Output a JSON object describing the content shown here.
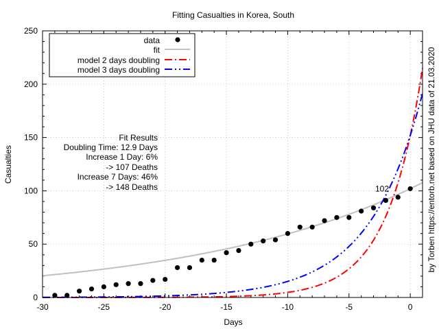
{
  "chart_data": {
    "type": "scatter",
    "title": "Fitting Casualties in Korea, South",
    "xlabel": "Days",
    "ylabel": "Casualties",
    "xlim": [
      -30,
      1
    ],
    "ylim": [
      0,
      250
    ],
    "xticks": [
      -30,
      -25,
      -20,
      -15,
      -10,
      -5,
      0
    ],
    "yticks": [
      0,
      50,
      100,
      150,
      200,
      250
    ],
    "grid": true,
    "legend_position": "top-left",
    "colors": {
      "data": "#000000",
      "fit": "#c0c0c0",
      "model2": "#ff0000",
      "model3": "#0000ff",
      "grid": "#b0b0b0"
    },
    "series": [
      {
        "name": "data",
        "kind": "points",
        "x": [
          -29,
          -28,
          -27,
          -26,
          -25,
          -24,
          -23,
          -22,
          -21,
          -20,
          -19,
          -18,
          -17,
          -16,
          -15,
          -14,
          -13,
          -12,
          -11,
          -10,
          -9,
          -8,
          -7,
          -6,
          -5,
          -4,
          -3,
          -2,
          -1,
          0
        ],
        "y": [
          2,
          2,
          6,
          8,
          10,
          12,
          13,
          13,
          16,
          17,
          28,
          28,
          35,
          35,
          42,
          44,
          50,
          53,
          54,
          60,
          66,
          66,
          72,
          75,
          75,
          81,
          84,
          91,
          94,
          102
        ]
      },
      {
        "name": "fit",
        "kind": "curve",
        "y_at_zero": 102,
        "doubling_days": 12.9,
        "x_range": [
          -30,
          1
        ]
      },
      {
        "name": "model 2 days doubling",
        "kind": "curve",
        "y_at_zero": 152,
        "doubling_days": 2,
        "x_range": [
          -30,
          1
        ]
      },
      {
        "name": "model 3 days doubling",
        "kind": "curve",
        "y_at_zero": 152,
        "doubling_days": 3,
        "x_range": [
          -30,
          1
        ]
      }
    ],
    "legend": [
      "data",
      "fit",
      "model 2 days doubling",
      "model 3 days doubling"
    ],
    "annotations": {
      "fit_results": [
        "Fit Results",
        "Doubling Time: 12.9 Days",
        "Increase 1 Day: 6%",
        "-> 107 Deaths",
        "Increase 7 Days: 46%",
        "-> 148 Deaths"
      ],
      "last_value_label": "102",
      "last_value_point": {
        "x": -2.3,
        "y": 102
      },
      "side_credit": "by Torben https://entorb.net based on JHU data of 21.03.2020"
    }
  }
}
